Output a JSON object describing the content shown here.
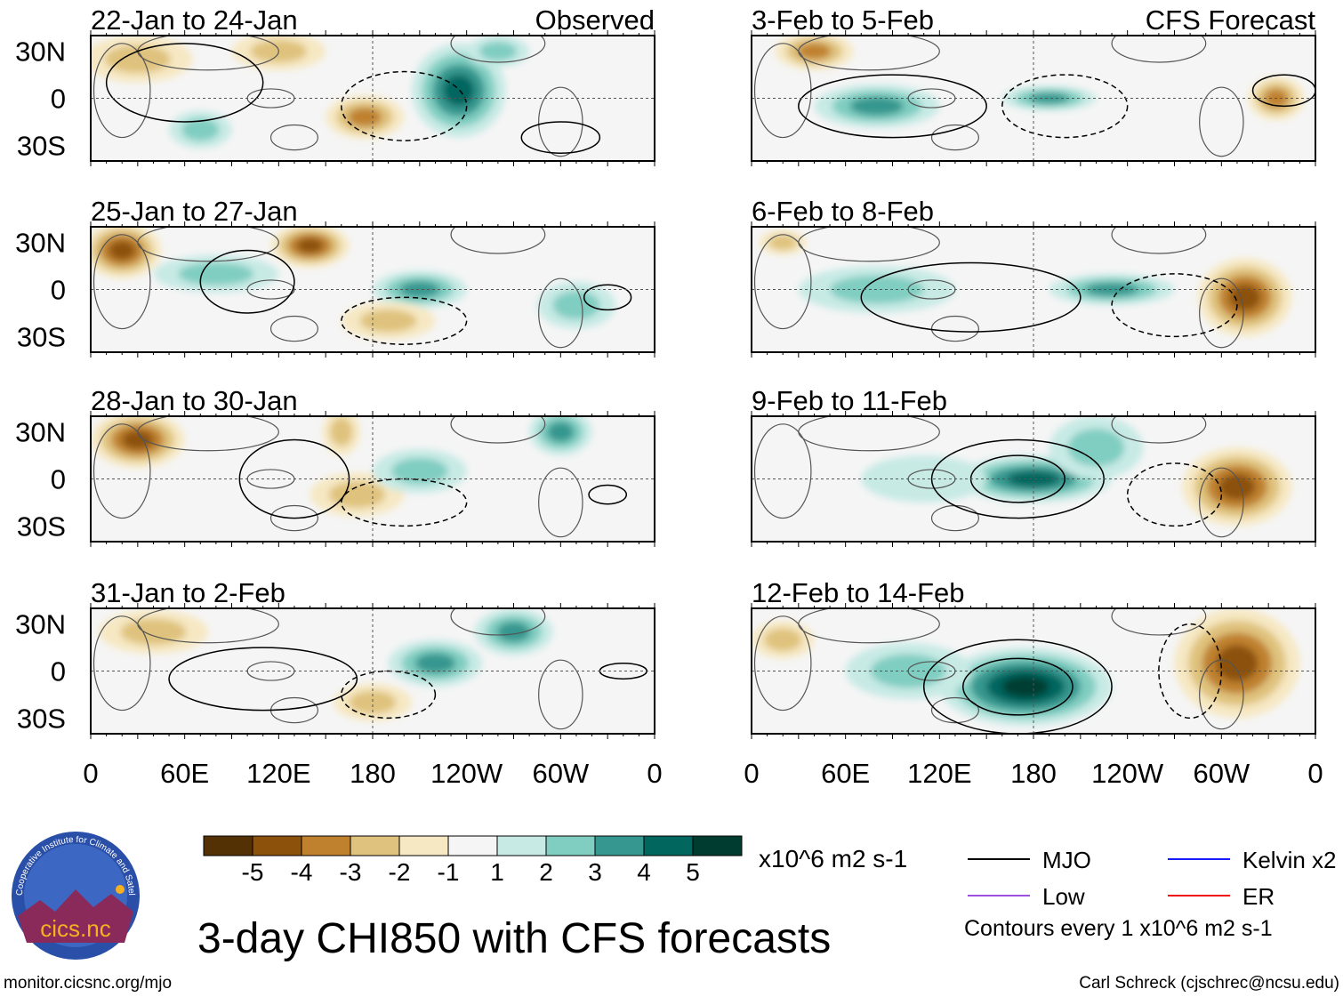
{
  "chart_data": {
    "type": "heatmap",
    "title": "3-day CHI850 with CFS forecasts",
    "units": "x10^6 m2 s-1",
    "column_labels": [
      "Observed",
      "CFS Forecast"
    ],
    "panels": [
      {
        "title": "22-Jan to 24-Jan",
        "column": "Observed"
      },
      {
        "title": "25-Jan to 27-Jan",
        "column": "Observed"
      },
      {
        "title": "28-Jan to 30-Jan",
        "column": "Observed"
      },
      {
        "title": "31-Jan to 2-Feb",
        "column": "Observed"
      },
      {
        "title": "3-Feb to 5-Feb",
        "column": "CFS Forecast"
      },
      {
        "title": "6-Feb to 8-Feb",
        "column": "CFS Forecast"
      },
      {
        "title": "9-Feb to 11-Feb",
        "column": "CFS Forecast"
      },
      {
        "title": "12-Feb to 14-Feb",
        "column": "CFS Forecast"
      }
    ],
    "y_ticks": [
      "30N",
      "0",
      "30S"
    ],
    "x_ticks": [
      "0",
      "60E",
      "120E",
      "180",
      "120W",
      "60W",
      "0"
    ],
    "colorbar": {
      "labels": [
        "-5",
        "-4",
        "-3",
        "-2",
        "-1",
        "1",
        "2",
        "3",
        "4",
        "5"
      ],
      "colors": [
        "#543005",
        "#8c510a",
        "#bf812d",
        "#dfc27d",
        "#f6e8c3",
        "#f5f5f5",
        "#c7eae5",
        "#80cdc1",
        "#35978f",
        "#01665e",
        "#003c30"
      ]
    },
    "legend": [
      {
        "label": "MJO",
        "color": "#000000"
      },
      {
        "label": "Kelvin x2",
        "color": "#1a1aff"
      },
      {
        "label": "Low",
        "color": "#a050e0"
      },
      {
        "label": "ER",
        "color": "#ee1111"
      }
    ],
    "contour_note": "Contours every 1 x10^6 m2 s-1"
  },
  "footer": {
    "url": "monitor.cicsnc.org/mjo",
    "credit": "Carl Schreck (cjschrec@ncsu.edu)"
  },
  "logo": {
    "name": "cics.nc",
    "ring_text": "Cooperative Institute for Climate and Satellites"
  }
}
